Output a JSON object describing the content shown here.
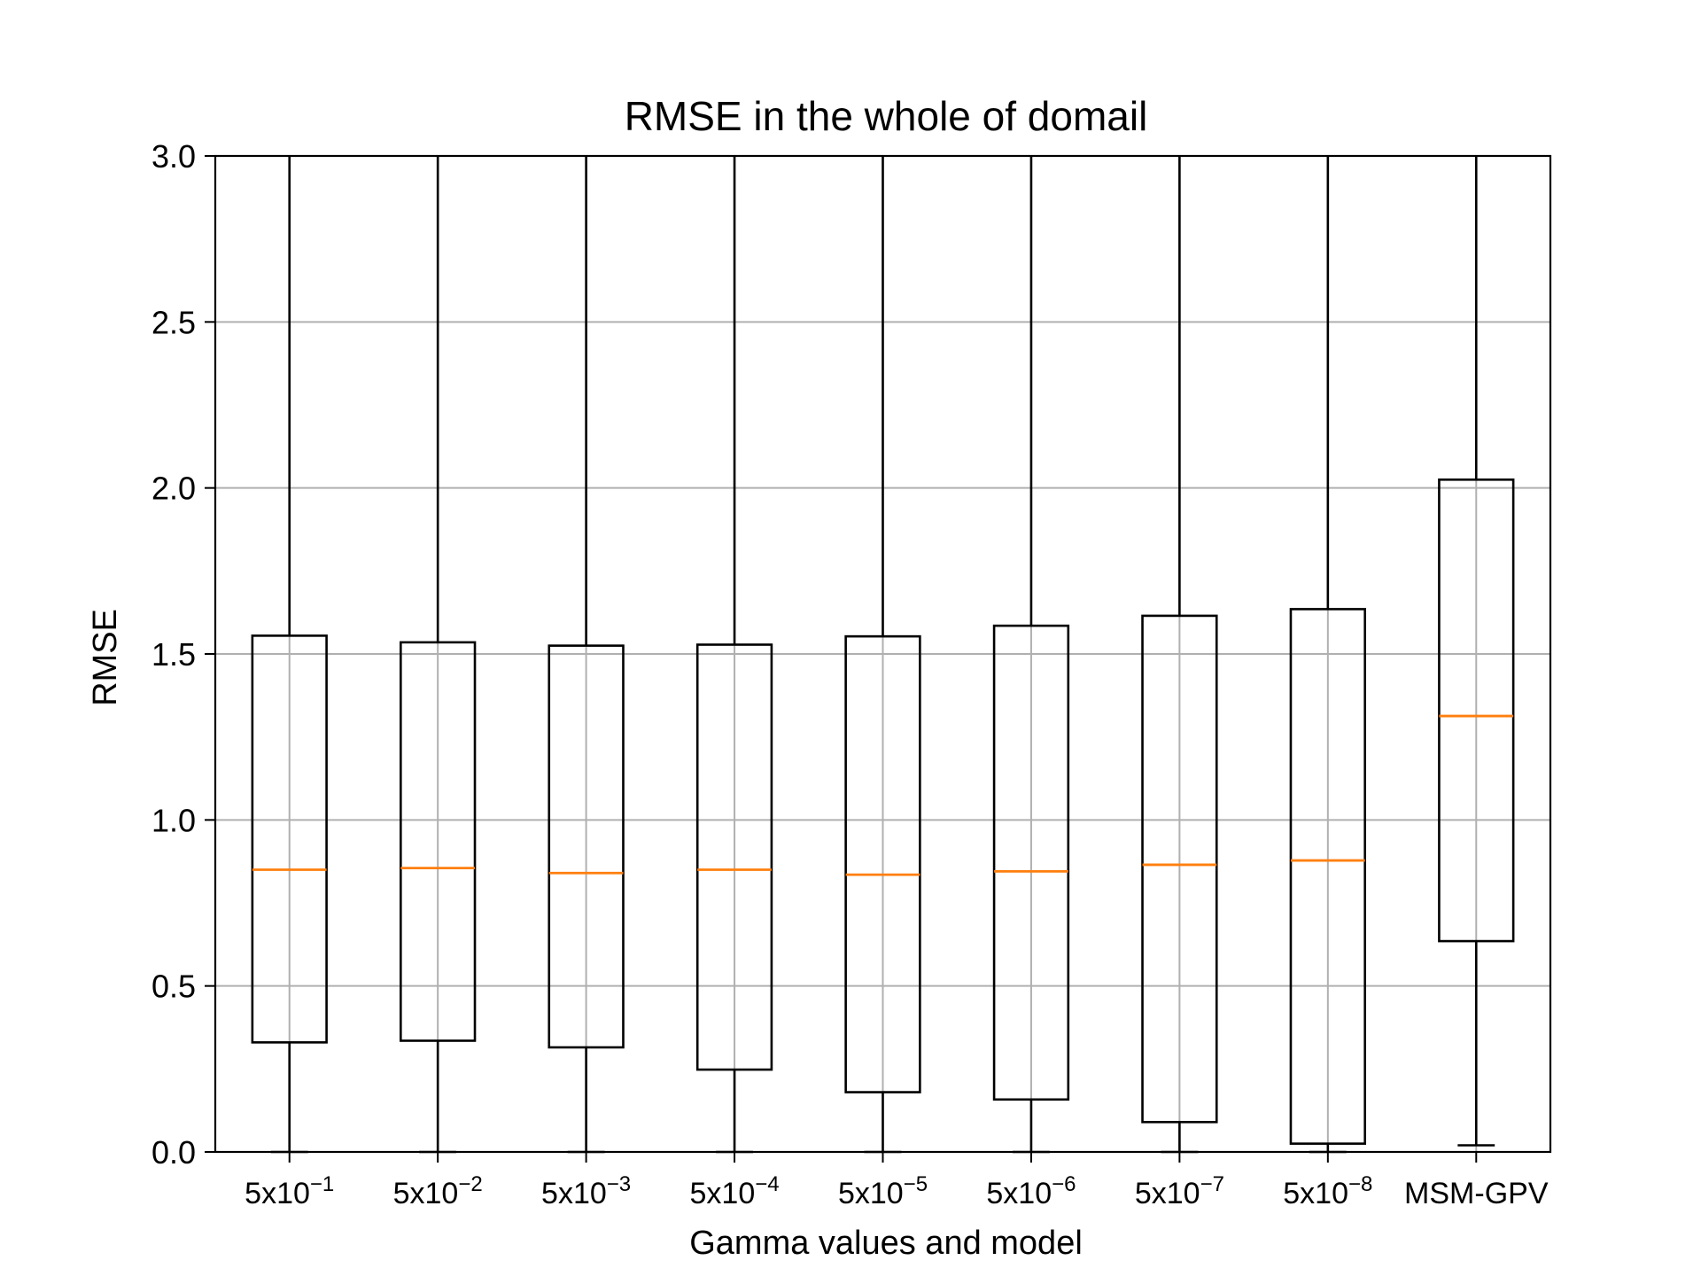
{
  "chart_data": {
    "type": "box",
    "title": "RMSE in the whole of domail",
    "xlabel": "Gamma values and model",
    "ylabel": "RMSE",
    "ylim": [
      0,
      3.0
    ],
    "yticks": [
      "0.0",
      "0.5",
      "1.0",
      "1.5",
      "2.0",
      "2.5",
      "3.0"
    ],
    "grid": true,
    "categories": [
      {
        "base": "5x10",
        "exp": "−1"
      },
      {
        "base": "5x10",
        "exp": "−2"
      },
      {
        "base": "5x10",
        "exp": "−3"
      },
      {
        "base": "5x10",
        "exp": "−4"
      },
      {
        "base": "5x10",
        "exp": "−5"
      },
      {
        "base": "5x10",
        "exp": "−6"
      },
      {
        "base": "5x10",
        "exp": "−7"
      },
      {
        "base": "5x10",
        "exp": "−8"
      },
      {
        "base": "MSM-GPV",
        "exp": ""
      }
    ],
    "boxes": [
      {
        "whisker_low": 0.0,
        "q1": 0.33,
        "median": 0.85,
        "q3": 1.555,
        "whisker_high": 3.0
      },
      {
        "whisker_low": 0.0,
        "q1": 0.335,
        "median": 0.855,
        "q3": 1.535,
        "whisker_high": 3.0
      },
      {
        "whisker_low": 0.0,
        "q1": 0.315,
        "median": 0.84,
        "q3": 1.525,
        "whisker_high": 3.0
      },
      {
        "whisker_low": 0.0,
        "q1": 0.248,
        "median": 0.85,
        "q3": 1.528,
        "whisker_high": 3.0
      },
      {
        "whisker_low": 0.0,
        "q1": 0.18,
        "median": 0.835,
        "q3": 1.553,
        "whisker_high": 3.0
      },
      {
        "whisker_low": 0.0,
        "q1": 0.158,
        "median": 0.845,
        "q3": 1.585,
        "whisker_high": 3.0
      },
      {
        "whisker_low": 0.0,
        "q1": 0.09,
        "median": 0.865,
        "q3": 1.615,
        "whisker_high": 3.0
      },
      {
        "whisker_low": 0.0,
        "q1": 0.025,
        "median": 0.878,
        "q3": 1.635,
        "whisker_high": 3.0
      },
      {
        "whisker_low": 0.02,
        "q1": 0.635,
        "median": 1.313,
        "q3": 2.025,
        "whisker_high": 3.0
      }
    ],
    "colors": {
      "box": "#000000",
      "median": "#ff7f0e",
      "grid": "#b0b0b0"
    }
  }
}
